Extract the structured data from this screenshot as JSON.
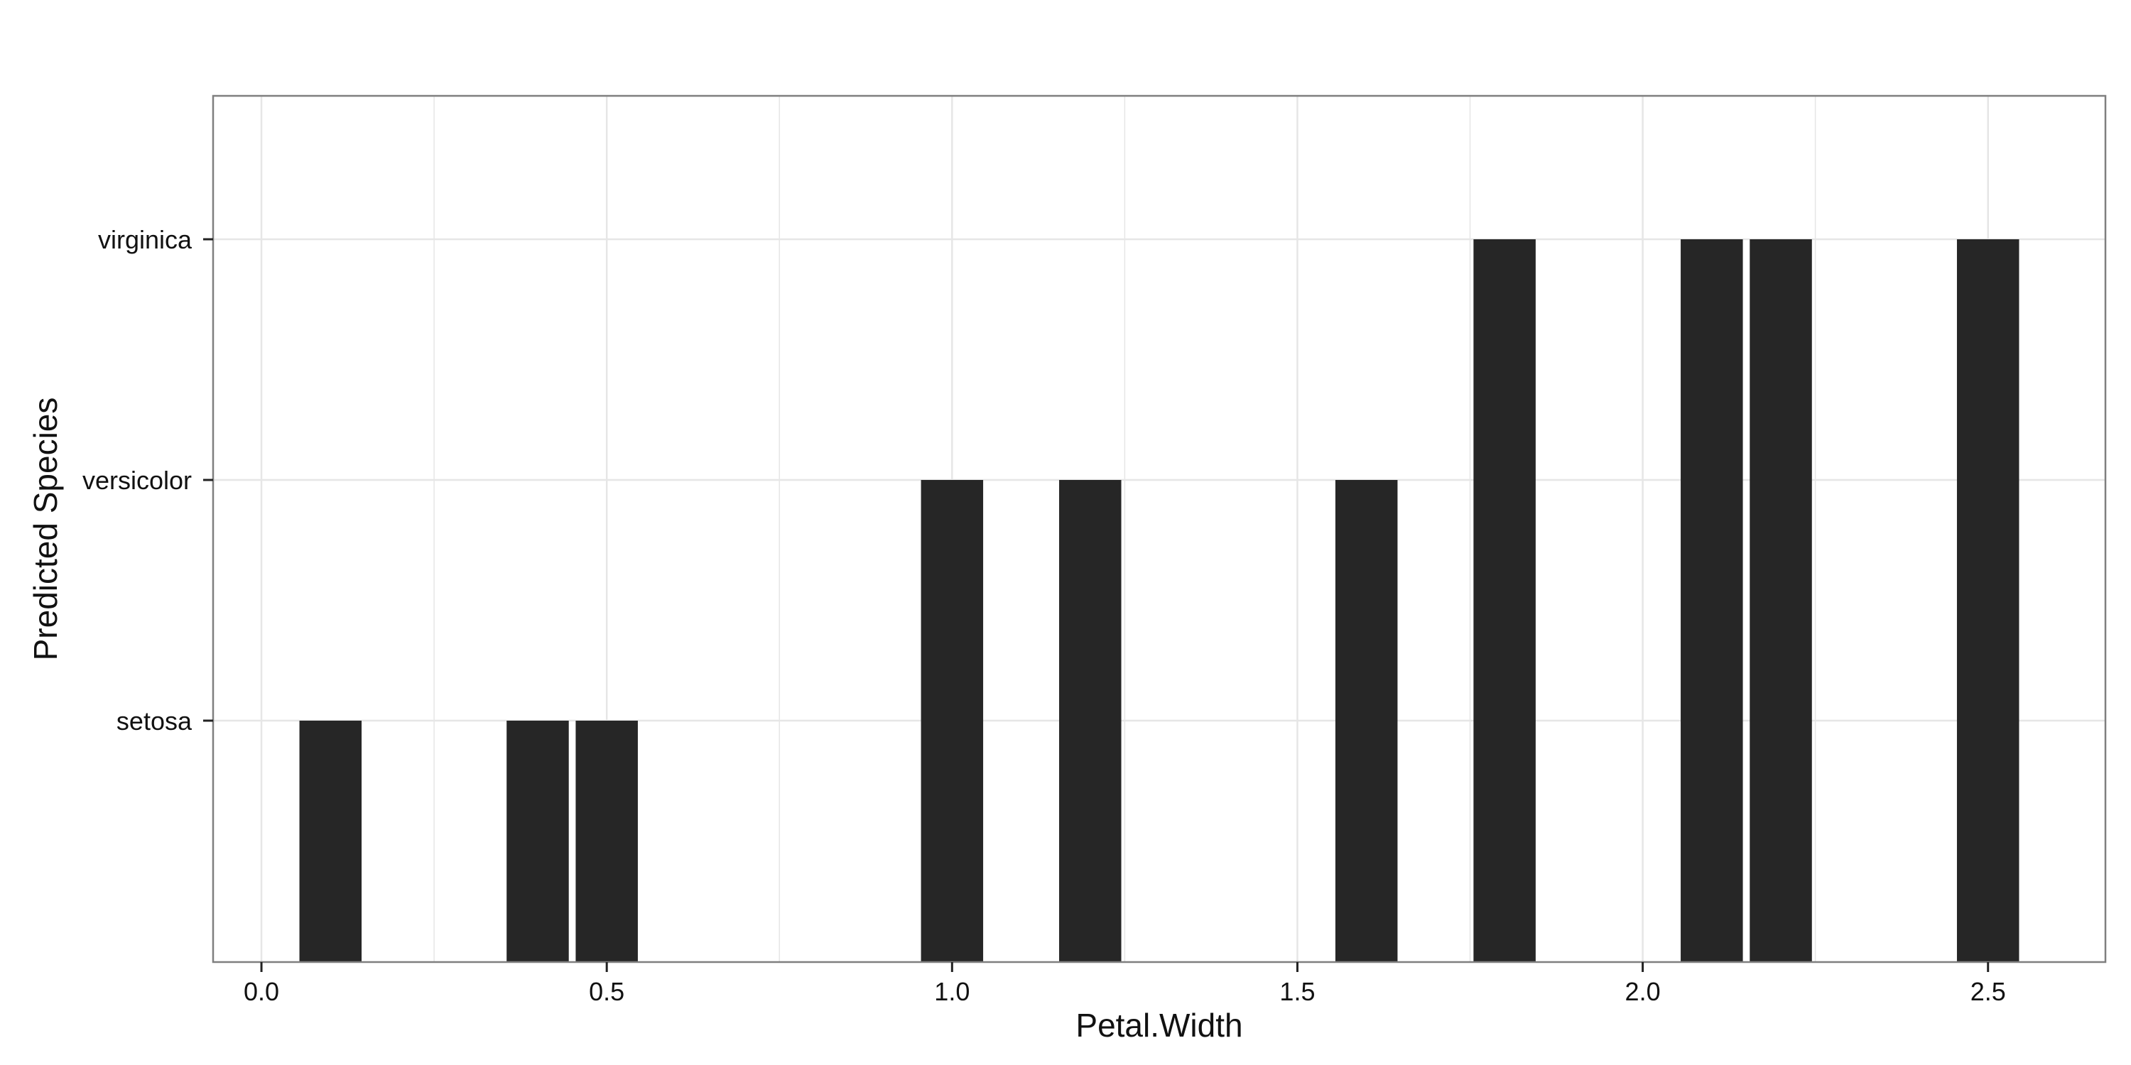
{
  "chart_data": {
    "type": "bar",
    "xlabel": "Petal.Width",
    "ylabel": "Predicted Species",
    "y_categories": [
      "setosa",
      "versicolor",
      "virginica"
    ],
    "x_ticks": [
      "0.0",
      "0.5",
      "1.0",
      "1.5",
      "2.0",
      "2.5"
    ],
    "xlim": [
      -0.07,
      2.67
    ],
    "bar_width": 0.09,
    "grid": true,
    "bars": [
      {
        "x": 0.1,
        "value": "setosa"
      },
      {
        "x": 0.4,
        "value": "setosa"
      },
      {
        "x": 0.5,
        "value": "setosa"
      },
      {
        "x": 1.0,
        "value": "versicolor"
      },
      {
        "x": 1.2,
        "value": "versicolor"
      },
      {
        "x": 1.6,
        "value": "versicolor"
      },
      {
        "x": 1.8,
        "value": "virginica"
      },
      {
        "x": 2.1,
        "value": "virginica"
      },
      {
        "x": 2.2,
        "value": "virginica"
      },
      {
        "x": 2.5,
        "value": "virginica"
      }
    ],
    "colors": {
      "bar": "#262626",
      "grid": "#e6e6e6",
      "panel_border": "#7f7f7f",
      "tick": "#222222"
    }
  }
}
